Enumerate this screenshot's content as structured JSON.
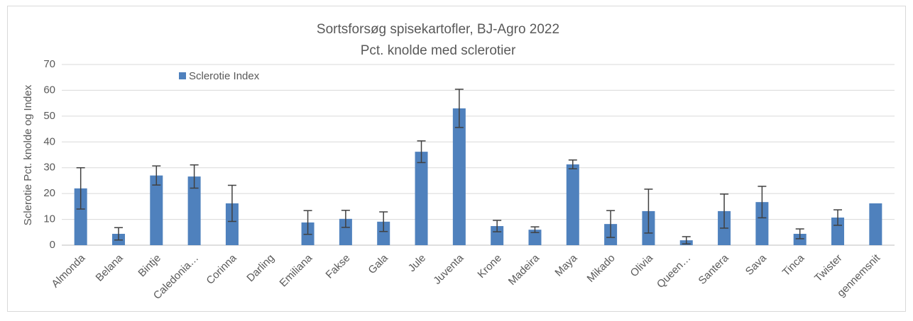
{
  "chart_data": {
    "type": "bar",
    "title": "Sortsforsøg spisekartofler, BJ-Agro 2022",
    "subtitle": "Pct. knolde med sclerotier",
    "y_label": "Sclerotie Pct. knolde og Index",
    "categories": [
      "Almonda",
      "Belana",
      "Bintje",
      "Caledonia…",
      "Corinna",
      "Darling",
      "Emiliana",
      "Fakse",
      "Gala",
      "Jule",
      "Juventa",
      "Krone",
      "Madeira",
      "Maya",
      "Mikado",
      "Olivia",
      "Queen…",
      "Santera",
      "Sava",
      "Tinca",
      "Twister",
      "gennemsnit"
    ],
    "series": [
      {
        "name": "Sclerotie Index",
        "color": "#4f81bd",
        "values": [
          22,
          4.4,
          27,
          26.6,
          16.2,
          null,
          8.8,
          10.2,
          9.1,
          36.2,
          53,
          7.4,
          6,
          31.3,
          8.2,
          13.2,
          1.9,
          13.2,
          16.7,
          4.4,
          10.7,
          16.2
        ],
        "errors": [
          8,
          2.4,
          3.7,
          4.5,
          7,
          null,
          4.6,
          3.3,
          3.8,
          4.2,
          7.4,
          2.2,
          1.1,
          1.7,
          5.2,
          8.5,
          1.4,
          6.6,
          6.1,
          1.9,
          3,
          null
        ]
      }
    ],
    "ylim": [
      0,
      70
    ],
    "yticks": [
      0,
      10,
      20,
      30,
      40,
      50,
      60,
      70
    ],
    "grid": true,
    "legend": "top-left"
  }
}
